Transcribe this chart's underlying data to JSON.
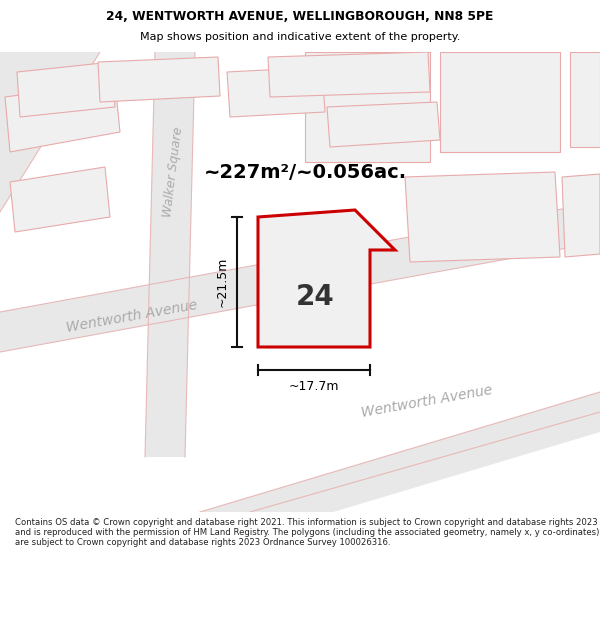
{
  "title_line1": "24, WENTWORTH AVENUE, WELLINGBOROUGH, NN8 5PE",
  "title_line2": "Map shows position and indicative extent of the property.",
  "area_label": "~227m²/~0.056ac.",
  "plot_number": "24",
  "dim_width": "~17.7m",
  "dim_height": "~21.5m",
  "street_label_left": "Wentworth Avenue",
  "street_label_right": "Wentworth Avenue",
  "street_label_vertical": "Walker Square",
  "footer": "Contains OS data © Crown copyright and database right 2021. This information is subject to Crown copyright and database rights 2023 and is reproduced with the permission of HM Land Registry. The polygons (including the associated geometry, namely x, y co-ordinates) are subject to Crown copyright and database rights 2023 Ordnance Survey 100026316.",
  "map_bg": "#f7f7f7",
  "road_fill": "#e8e8e8",
  "road_outline": "#e8b8b8",
  "building_fill": "#f0f0f0",
  "building_outline": "#e8aaaa",
  "plot_fill": "#f0f0f0",
  "plot_border": "#cc0000",
  "dim_line_color": "#111111",
  "street_text_color": "#aaaaaa",
  "footer_text_color": "#222222"
}
